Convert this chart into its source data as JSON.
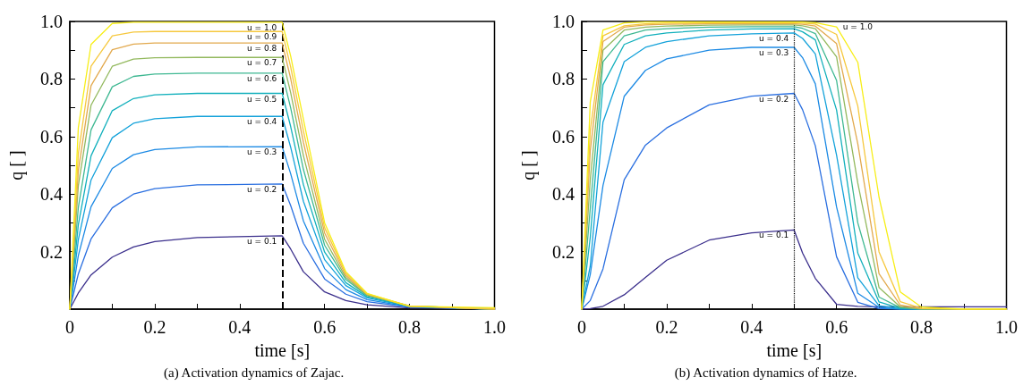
{
  "chart_data": [
    {
      "type": "line",
      "xlabel": "time [s]",
      "ylabel": "q [ ]",
      "marker": "none",
      "line_style": "solid",
      "annotations": [
        "(a) Activation dynamics of Zajac."
      ],
      "xlim": [
        0,
        1
      ],
      "ylim": [
        0,
        1
      ],
      "xticks": [
        0,
        {
          "value": 0.1,
          "label": null
        },
        0.2,
        {
          "value": 0.3,
          "label": null
        },
        0.4,
        {
          "value": 0.5,
          "label": null
        },
        0.6,
        {
          "value": 0.7,
          "label": null
        },
        0.8,
        {
          "value": 0.9,
          "label": null
        },
        {
          "value": 1,
          "label": "1.0"
        }
      ],
      "yticks": [
        {
          "value": 0.1,
          "label": null
        },
        0.2,
        {
          "value": 0.3,
          "label": null
        },
        0.4,
        {
          "value": 0.5,
          "label": null
        },
        0.6,
        {
          "value": 0.7,
          "label": null
        },
        0.8,
        {
          "value": 0.9,
          "label": null
        },
        {
          "value": 1,
          "label": "1.0"
        }
      ],
      "ref_lines": [
        {
          "axis": "x",
          "value": 0.5,
          "color": "#000000",
          "line_style": "dashed"
        }
      ],
      "x": [
        0,
        0.02,
        0.05,
        0.1,
        0.15,
        0.2,
        0.3,
        0.5,
        0.52,
        0.55,
        0.6,
        0.65,
        0.7,
        0.8,
        1.0
      ],
      "series": [
        {
          "name": "u = 0.1",
          "color": "#3b2f8c",
          "values": [
            0,
            0.056,
            0.119,
            0.181,
            0.216,
            0.235,
            0.249,
            0.255,
            0.209,
            0.13,
            0.06,
            0.03,
            0.015,
            0.004,
            0.003
          ]
        },
        {
          "name": "u = 0.2",
          "color": "#2a6fe0",
          "values": [
            0,
            0.122,
            0.244,
            0.352,
            0.4,
            0.419,
            0.432,
            0.435,
            0.36,
            0.229,
            0.105,
            0.052,
            0.026,
            0.007,
            0
          ]
        },
        {
          "name": "u = 0.3",
          "color": "#1c8ae4",
          "values": [
            0,
            0.186,
            0.356,
            0.489,
            0.537,
            0.555,
            0.564,
            0.565,
            0.471,
            0.307,
            0.141,
            0.068,
            0.033,
            0.008,
            0
          ]
        },
        {
          "name": "u = 0.4",
          "color": "#14a2da",
          "values": [
            0,
            0.241,
            0.449,
            0.596,
            0.646,
            0.662,
            0.67,
            0.67,
            0.563,
            0.375,
            0.172,
            0.082,
            0.039,
            0.009,
            0
          ]
        },
        {
          "name": "u = 0.5",
          "color": "#12b0bc",
          "values": [
            0,
            0.293,
            0.533,
            0.69,
            0.732,
            0.745,
            0.75,
            0.75,
            0.635,
            0.433,
            0.198,
            0.092,
            0.043,
            0.01,
            0
          ]
        },
        {
          "name": "u = 0.6",
          "color": "#3fb892",
          "values": [
            0,
            0.353,
            0.623,
            0.773,
            0.809,
            0.817,
            0.82,
            0.82,
            0.7,
            0.486,
            0.222,
            0.103,
            0.047,
            0.011,
            0
          ]
        },
        {
          "name": "u = 0.7",
          "color": "#93b95e",
          "values": [
            0,
            0.429,
            0.709,
            0.844,
            0.869,
            0.874,
            0.875,
            0.875,
            0.753,
            0.534,
            0.243,
            0.11,
            0.049,
            0.011,
            0
          ]
        },
        {
          "name": "u = 0.8",
          "color": "#e2a94e",
          "values": [
            0,
            0.481,
            0.777,
            0.902,
            0.921,
            0.925,
            0.925,
            0.925,
            0.802,
            0.58,
            0.265,
            0.117,
            0.052,
            0.01,
            0
          ]
        },
        {
          "name": "u = 0.9",
          "color": "#f6c83e",
          "values": [
            0,
            0.54,
            0.844,
            0.95,
            0.963,
            0.965,
            0.965,
            0.965,
            0.842,
            0.62,
            0.283,
            0.124,
            0.053,
            0.011,
            0
          ]
        },
        {
          "name": "u = 1.0",
          "color": "#f7ee16",
          "values": [
            0,
            0.63,
            0.92,
            0.993,
            0.997,
            0.997,
            0.997,
            0.997,
            0.88,
            0.66,
            0.3,
            0.13,
            0.055,
            0.01,
            0.005
          ]
        }
      ]
    },
    {
      "type": "line",
      "xlabel": "time [s]",
      "ylabel": "q [ ]",
      "marker": "none",
      "line_style": "solid",
      "annotations": [
        "(b) Activation dynamics of Hatze."
      ],
      "xlim": [
        0,
        1
      ],
      "ylim": [
        0,
        1
      ],
      "xticks": [
        0,
        {
          "value": 0.1,
          "label": null
        },
        0.2,
        {
          "value": 0.3,
          "label": null
        },
        0.4,
        {
          "value": 0.5,
          "label": null
        },
        0.6,
        {
          "value": 0.7,
          "label": null
        },
        0.8,
        {
          "value": 0.9,
          "label": null
        },
        {
          "value": 1,
          "label": "1.0"
        }
      ],
      "yticks": [
        {
          "value": 0.1,
          "label": null
        },
        0.2,
        {
          "value": 0.3,
          "label": null
        },
        0.4,
        {
          "value": 0.5,
          "label": null
        },
        0.6,
        {
          "value": 0.7,
          "label": null
        },
        0.8,
        {
          "value": 0.9,
          "label": null
        },
        {
          "value": 1,
          "label": "1.0"
        }
      ],
      "ref_lines": [
        {
          "axis": "x",
          "value": 0.5,
          "color": "#000000",
          "line_style": "dotted"
        }
      ],
      "x": [
        0,
        0.02,
        0.05,
        0.1,
        0.15,
        0.2,
        0.3,
        0.4,
        0.5,
        0.52,
        0.55,
        0.6,
        0.65,
        0.7,
        0.75,
        0.8,
        0.9,
        1.0
      ],
      "series": [
        {
          "name": "u = 0.1",
          "color": "#3b2f8c",
          "values": [
            0,
            0.002,
            0.01,
            0.05,
            0.11,
            0.17,
            0.24,
            0.265,
            0.275,
            0.195,
            0.107,
            0.017,
            0.01,
            0.008,
            0.008,
            0.008,
            0.008,
            0.008
          ]
        },
        {
          "name": "u = 0.2",
          "color": "#2a6fe0",
          "values": [
            0,
            0.03,
            0.14,
            0.45,
            0.57,
            0.63,
            0.71,
            0.74,
            0.75,
            0.693,
            0.568,
            0.182,
            0.024,
            0.002,
            0,
            0,
            0,
            0
          ]
        },
        {
          "name": "u = 0.3",
          "color": "#1c8ae4",
          "values": [
            0,
            0.12,
            0.43,
            0.74,
            0.83,
            0.87,
            0.9,
            0.91,
            0.91,
            0.874,
            0.783,
            0.355,
            0.055,
            0.006,
            0,
            0,
            0,
            0
          ]
        },
        {
          "name": "u = 0.4",
          "color": "#14a2da",
          "values": [
            0,
            0.15,
            0.65,
            0.86,
            0.91,
            0.93,
            0.95,
            0.957,
            0.96,
            0.941,
            0.887,
            0.535,
            0.109,
            0.012,
            0.001,
            0,
            0,
            0
          ]
        },
        {
          "color": "#12b0bc",
          "values": [
            0,
            0.25,
            0.78,
            0.92,
            0.95,
            0.96,
            0.97,
            0.974,
            0.975,
            0.964,
            0.936,
            0.692,
            0.195,
            0.025,
            0.003,
            0,
            0,
            0
          ]
        },
        {
          "color": "#3fb892",
          "values": [
            0,
            0.35,
            0.86,
            0.95,
            0.97,
            0.975,
            0.98,
            0.982,
            0.982,
            0.976,
            0.958,
            0.795,
            0.3,
            0.042,
            0.005,
            0,
            0,
            0
          ]
        },
        {
          "color": "#93b95e",
          "values": [
            0,
            0.45,
            0.9,
            0.97,
            0.98,
            0.984,
            0.987,
            0.988,
            0.988,
            0.985,
            0.975,
            0.877,
            0.438,
            0.075,
            0.008,
            0,
            0,
            0
          ]
        },
        {
          "color": "#e2a94e",
          "values": [
            0,
            0.55,
            0.93,
            0.98,
            0.988,
            0.99,
            0.992,
            0.992,
            0.992,
            0.99,
            0.984,
            0.923,
            0.575,
            0.123,
            0.014,
            0.002,
            0,
            0
          ]
        },
        {
          "color": "#f6c83e",
          "values": [
            0,
            0.62,
            0.95,
            0.985,
            0.992,
            0.994,
            0.995,
            0.995,
            0.995,
            0.994,
            0.991,
            0.955,
            0.706,
            0.199,
            0.026,
            0.003,
            0,
            0
          ]
        },
        {
          "name": "u = 1.0",
          "color": "#f7ee16",
          "values": [
            0,
            0.72,
            0.97,
            0.995,
            0.998,
            0.998,
            0.998,
            0.998,
            0.998,
            0.998,
            0.996,
            0.981,
            0.858,
            0.389,
            0.06,
            0.007,
            0,
            0
          ]
        }
      ]
    }
  ]
}
